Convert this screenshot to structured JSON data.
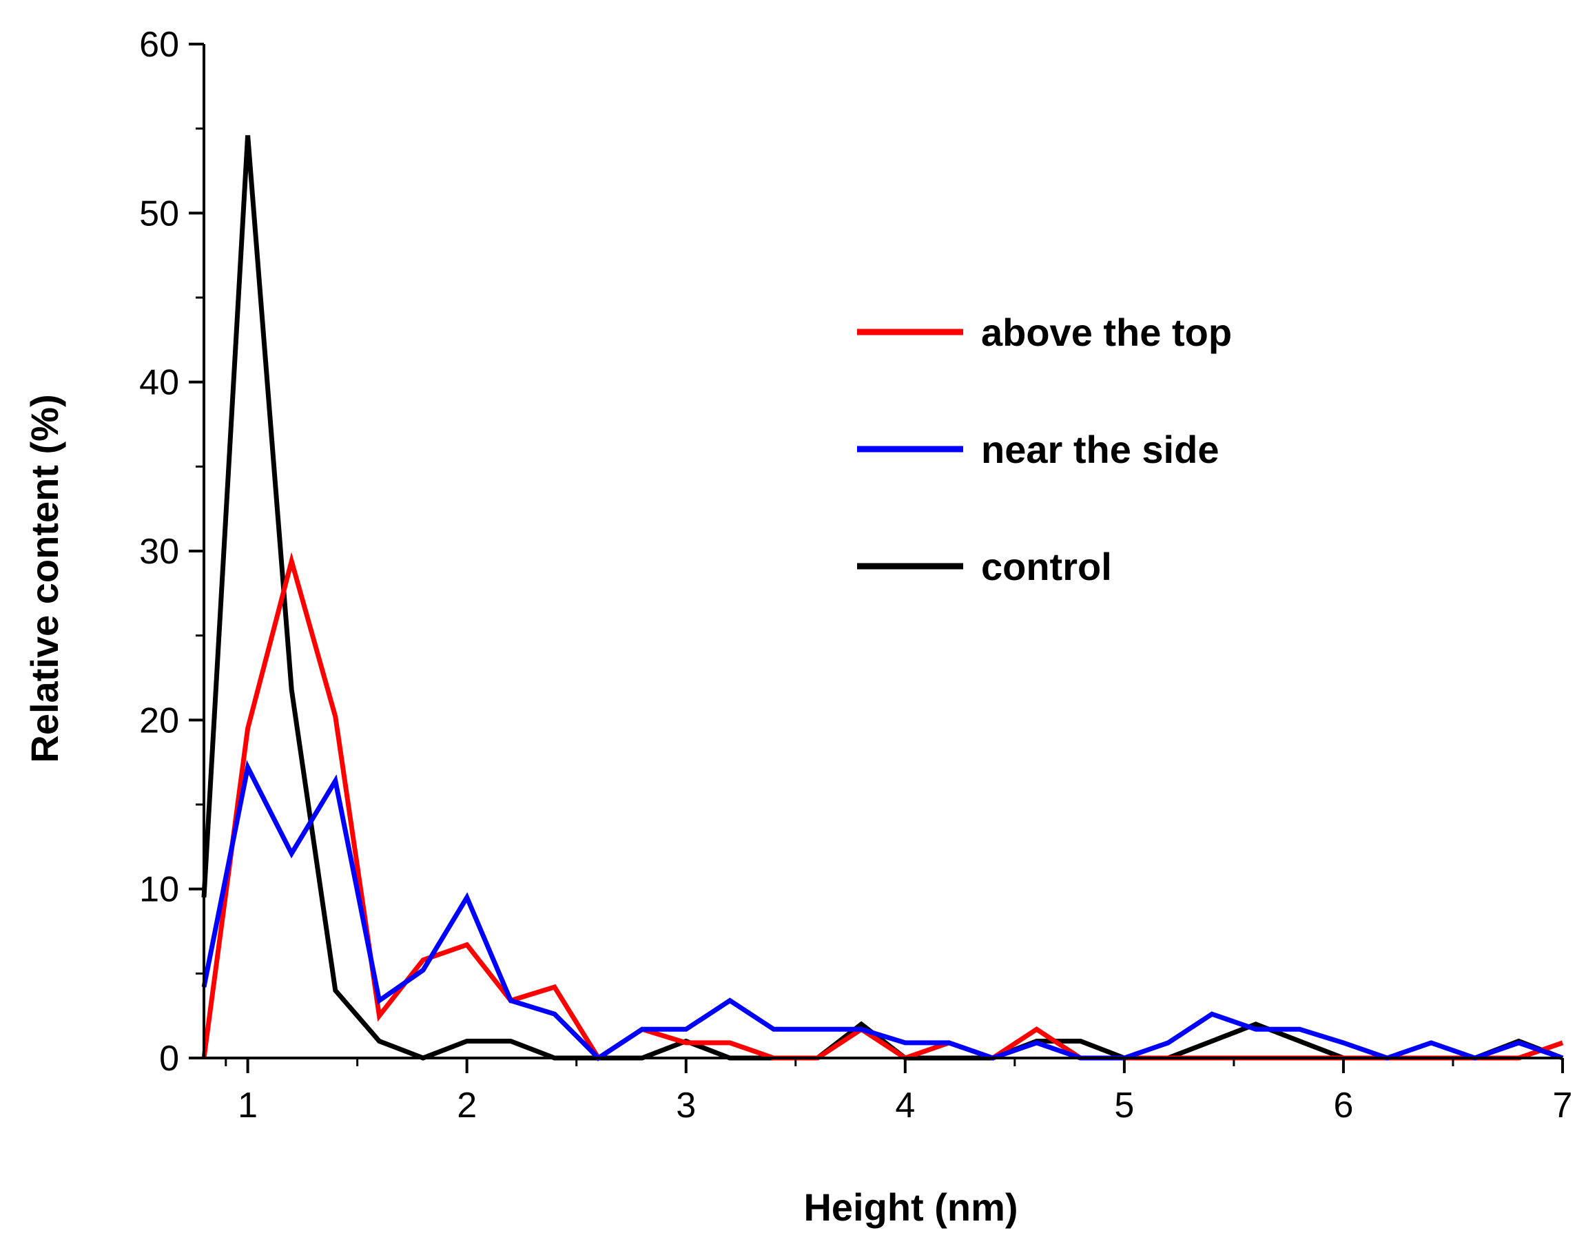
{
  "chart_data": {
    "type": "line",
    "title": "",
    "xlabel": "Height (nm)",
    "ylabel": "Relative content (%)",
    "xlim": [
      0.8,
      7
    ],
    "ylim": [
      0,
      60
    ],
    "xticks": [
      1,
      2,
      3,
      4,
      5,
      6,
      7
    ],
    "yticks": [
      0,
      10,
      20,
      30,
      40,
      50,
      60
    ],
    "x_tick_labels": [
      "1",
      "2",
      "3",
      "4",
      "5",
      "6",
      "7"
    ],
    "y_tick_labels": [
      "0",
      "10",
      "20",
      "30",
      "40",
      "50",
      "60"
    ],
    "x_minor_step": 0.5,
    "y_minor_step": 5,
    "grid": false,
    "legend_position": "upper-right",
    "series": [
      {
        "name": "above the top",
        "color": "#ff0000",
        "x": [
          0.8,
          1.0,
          1.2,
          1.4,
          1.6,
          1.8,
          2.0,
          2.2,
          2.4,
          2.6,
          2.8,
          3.0,
          3.2,
          3.4,
          3.6,
          3.8,
          4.0,
          4.2,
          4.4,
          4.6,
          4.8,
          5.0,
          5.2,
          5.4,
          5.6,
          5.8,
          6.0,
          6.2,
          6.4,
          6.6,
          6.8,
          7.0
        ],
        "values": [
          0,
          19.5,
          29.4,
          20.2,
          2.5,
          5.8,
          6.7,
          3.4,
          4.2,
          0,
          1.7,
          0.9,
          0.9,
          0,
          0,
          1.7,
          0,
          0.9,
          0,
          1.7,
          0,
          0,
          0,
          0,
          0,
          0,
          0,
          0,
          0,
          0,
          0,
          0.9
        ]
      },
      {
        "name": "near the side",
        "color": "#0000ff",
        "x": [
          0.8,
          1.0,
          1.2,
          1.4,
          1.6,
          1.8,
          2.0,
          2.2,
          2.4,
          2.6,
          2.8,
          3.0,
          3.2,
          3.4,
          3.6,
          3.8,
          4.0,
          4.2,
          4.4,
          4.6,
          4.8,
          5.0,
          5.2,
          5.4,
          5.6,
          5.8,
          6.0,
          6.2,
          6.4,
          6.6,
          6.8,
          7.0
        ],
        "values": [
          4.2,
          17.2,
          12.1,
          16.4,
          3.4,
          5.2,
          9.5,
          3.4,
          2.6,
          0,
          1.7,
          1.7,
          3.4,
          1.7,
          1.7,
          1.7,
          0.9,
          0.9,
          0,
          0.9,
          0,
          0,
          0.9,
          2.6,
          1.7,
          1.7,
          0.9,
          0,
          0.9,
          0,
          0.9,
          0
        ]
      },
      {
        "name": "control",
        "color": "#000000",
        "x": [
          0.8,
          1.0,
          1.2,
          1.4,
          1.6,
          1.8,
          2.0,
          2.2,
          2.4,
          2.6,
          2.8,
          3.0,
          3.2,
          3.4,
          3.6,
          3.8,
          4.0,
          4.2,
          4.4,
          4.6,
          4.8,
          5.0,
          5.2,
          5.4,
          5.6,
          5.8,
          6.0,
          6.2,
          6.4,
          6.6,
          6.8,
          7.0
        ],
        "values": [
          9.5,
          54.6,
          21.8,
          4.0,
          1.0,
          0,
          1.0,
          1.0,
          0,
          0,
          0,
          1.0,
          0,
          0,
          0,
          2.0,
          0,
          0,
          0,
          1.0,
          1.0,
          0,
          0,
          1.0,
          2.0,
          1.0,
          0,
          0,
          0,
          0,
          1.0,
          0
        ]
      }
    ]
  }
}
